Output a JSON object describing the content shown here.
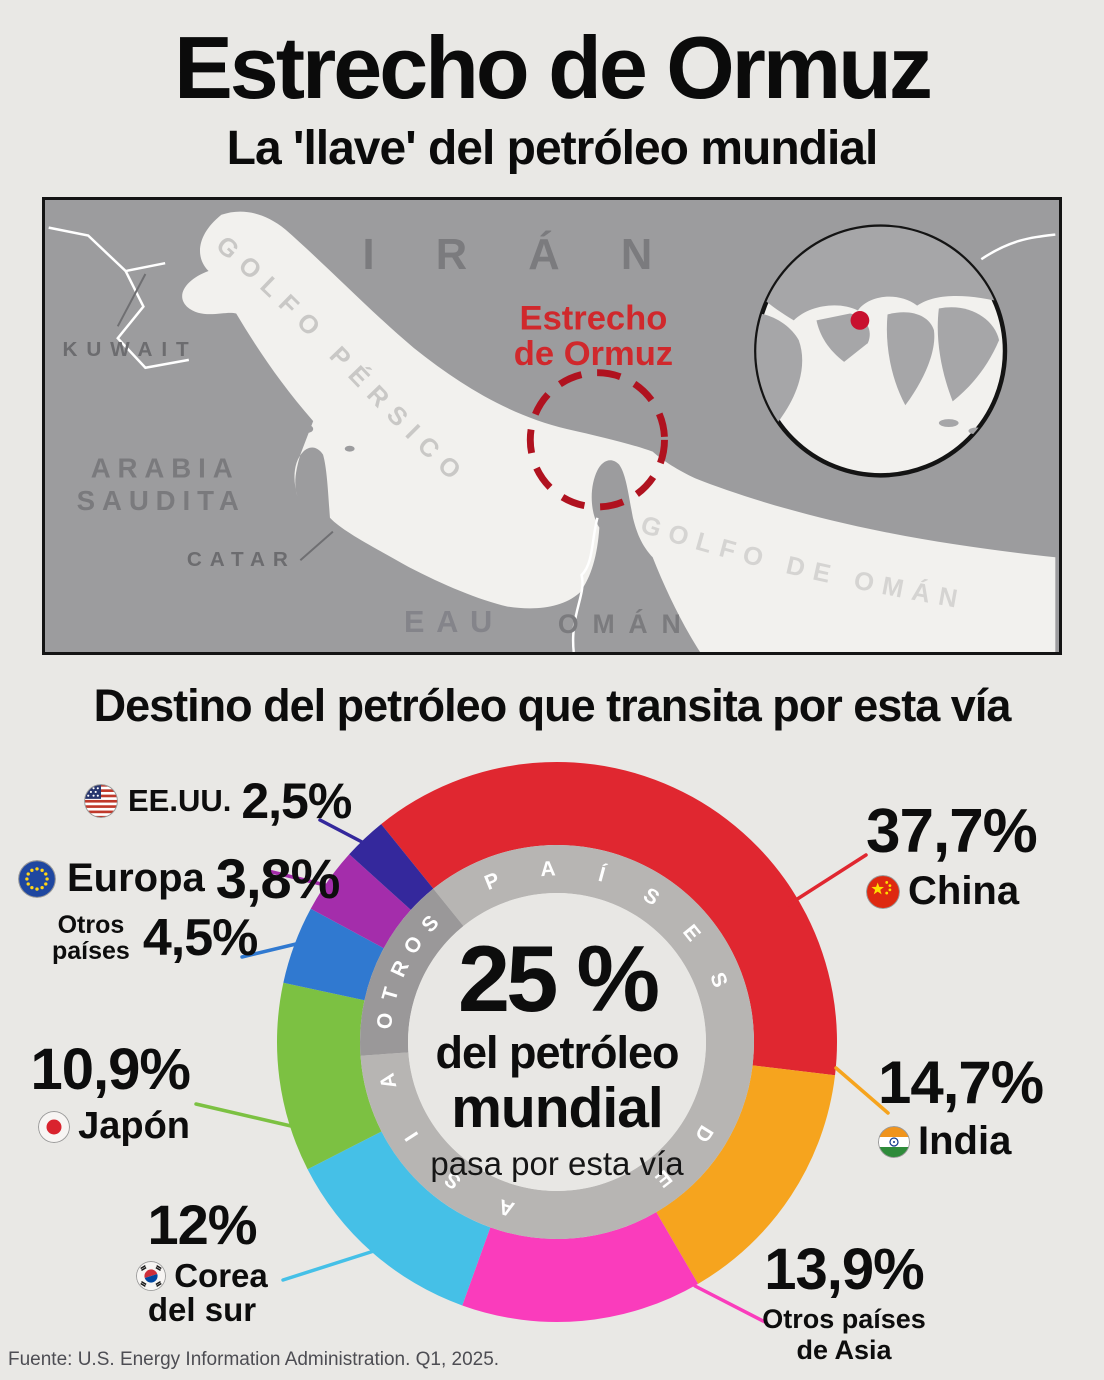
{
  "header": {
    "title": "Estrecho de Ormuz",
    "subtitle": "La 'llave' del petróleo mundial"
  },
  "map": {
    "labels": {
      "kuwait": "KUWAIT",
      "iran": "IRÁN",
      "arabia_line1": "ARABIA",
      "arabia_line2": "SAUDITA",
      "catar": "CATAR",
      "eau": "EAU",
      "oman": "OMÁN",
      "golfo_persico": "GOLFO PÉRSICO",
      "golfo_oman": "GOLFO DE OMÁN",
      "estrecho_line1": "Estrecho",
      "estrecho_line2": "de Ormuz"
    }
  },
  "section": {
    "title": "Destino del petróleo que transita por esta vía"
  },
  "chart_data": {
    "type": "donut",
    "title": "Destino del petróleo que transita por esta vía",
    "units": "%",
    "start_angle_deg": 321.1,
    "direction": "clockwise",
    "series": [
      {
        "name": "China",
        "value": 37.7,
        "display": "37,7%",
        "color": "#e02730"
      },
      {
        "name": "India",
        "value": 14.7,
        "display": "14,7%",
        "color": "#f6a41e"
      },
      {
        "name": "Otros países de Asia",
        "value": 13.9,
        "display": "13,9%",
        "color": "#fa3cbc"
      },
      {
        "name": "Corea del sur",
        "value": 12.0,
        "display": "12%",
        "color": "#45c0e7"
      },
      {
        "name": "Japón",
        "value": 10.9,
        "display": "10,9%",
        "color": "#7cc142"
      },
      {
        "name": "Otros países",
        "value": 4.5,
        "display": "4,5%",
        "color": "#3079d0"
      },
      {
        "name": "Europa",
        "value": 3.8,
        "display": "3,8%",
        "color": "#a42dab"
      },
      {
        "name": "EE.UU.",
        "value": 2.5,
        "display": "2,5%",
        "color": "#34289c"
      }
    ],
    "labels_split": {
      "corea_line1": "Corea",
      "corea_line2": "del sur",
      "otrosp_line1": "Otros",
      "otrosp_line2": "países",
      "otrosasia_line1": "Otros países",
      "otrosasia_line2": "de Asia"
    },
    "ring_labels": {
      "asia": "PAÍSES DE ASIA",
      "otros": "OTROS"
    },
    "ring_colors": {
      "asia": "#b7b5b3",
      "otros": "#9a9899"
    },
    "center_label": {
      "value": "25 %",
      "line1": "del petróleo",
      "line2": "mundial",
      "line3": "pasa por esta vía"
    }
  },
  "footer": {
    "source": "Fuente: U.S. Energy Information Administration. Q1, 2025."
  }
}
